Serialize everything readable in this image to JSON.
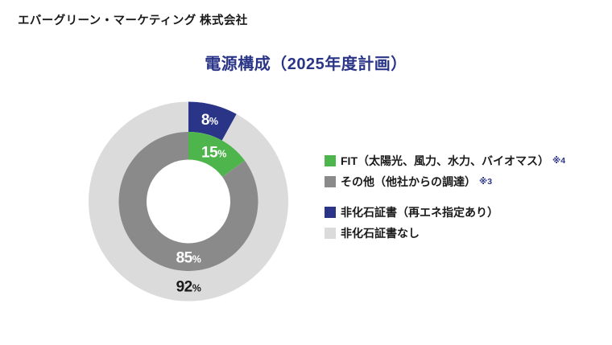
{
  "header": {
    "company": "エバーグリーン・マーケティング 株式会社"
  },
  "chart": {
    "title": "電源構成（2025年度計画）"
  },
  "chart_data": {
    "type": "donut",
    "title": "電源構成（2025年度計画）",
    "units": "%",
    "start_angle_deg": 0,
    "direction": "clockwise",
    "rings": [
      {
        "name": "outer-certificates",
        "outer_radius": 124,
        "inner_radius": 86.5,
        "segments": [
          {
            "label": "非化石証書（再エネ指定あり）",
            "value": 8,
            "color": "#2B3588",
            "label_color": "#FFFFFF"
          },
          {
            "label": "非化石証書なし",
            "value": 92,
            "color": "#DBDBDB",
            "label_color": "#1A1A1A"
          }
        ]
      },
      {
        "name": "inner-sources",
        "outer_radius": 86.5,
        "inner_radius": 52,
        "segments": [
          {
            "label": "FIT（太陽光、風力、水力、バイオマス）",
            "value": 15,
            "color": "#4EB44C",
            "label_color": "#FFFFFF"
          },
          {
            "label": "その他（他社からの調達）",
            "value": 85,
            "color": "#8A8A8A",
            "label_color": "#FFFFFF"
          }
        ]
      }
    ],
    "legend_position": "right"
  },
  "legend": {
    "items": [
      {
        "label": "FIT（太陽光、風力、水力、バイオマス）",
        "note": "※4",
        "color": "#4EB44C"
      },
      {
        "label": "その他（他社からの調達）",
        "note": "※3",
        "color": "#8A8A8A"
      },
      {
        "label": "非化石証書（再エネ指定あり）",
        "note": "",
        "color": "#2B3588"
      },
      {
        "label": "非化石証書なし",
        "note": "",
        "color": "#DBDBDB"
      }
    ]
  },
  "colors": {
    "navy": "#2B3588",
    "green": "#4EB44C",
    "dark_gray": "#8A8A8A",
    "light_gray": "#DBDBDB",
    "text": "#1A1A1A",
    "background": "#FFFFFF"
  }
}
